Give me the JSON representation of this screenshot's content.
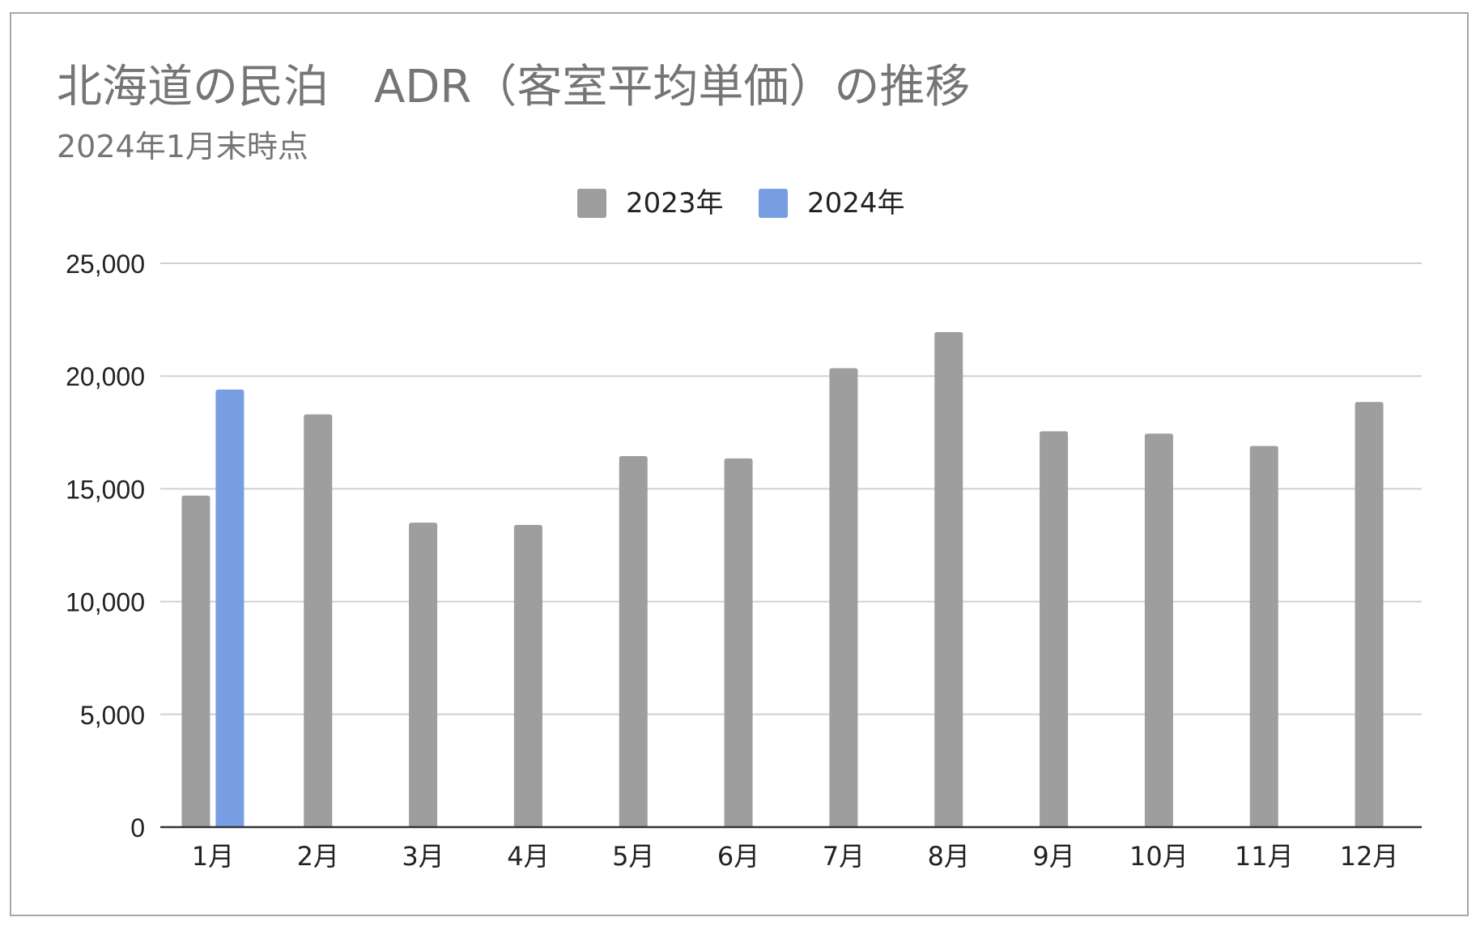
{
  "chart_data": {
    "type": "bar",
    "title": "北海道の民泊　ADR（客室平均単価）の推移",
    "subtitle": "2024年1月末時点",
    "categories": [
      "1月",
      "2月",
      "3月",
      "4月",
      "5月",
      "6月",
      "7月",
      "8月",
      "9月",
      "10月",
      "11月",
      "12月"
    ],
    "series": [
      {
        "name": "2023年",
        "color": "#9e9e9e",
        "values": [
          14700,
          18300,
          13500,
          13400,
          16450,
          16350,
          20350,
          21950,
          17550,
          17450,
          16900,
          18850
        ]
      },
      {
        "name": "2024年",
        "color": "#779ee3",
        "values": [
          19400,
          null,
          null,
          null,
          null,
          null,
          null,
          null,
          null,
          null,
          null,
          null
        ]
      }
    ],
    "ylim": [
      0,
      25000
    ],
    "yticks": [
      0,
      5000,
      10000,
      15000,
      20000,
      25000
    ],
    "ytick_labels": [
      "0",
      "5,000",
      "10,000",
      "15,000",
      "20,000",
      "25,000"
    ],
    "grid": true,
    "legend_position": "top-center",
    "xlabel": "",
    "ylabel": ""
  }
}
